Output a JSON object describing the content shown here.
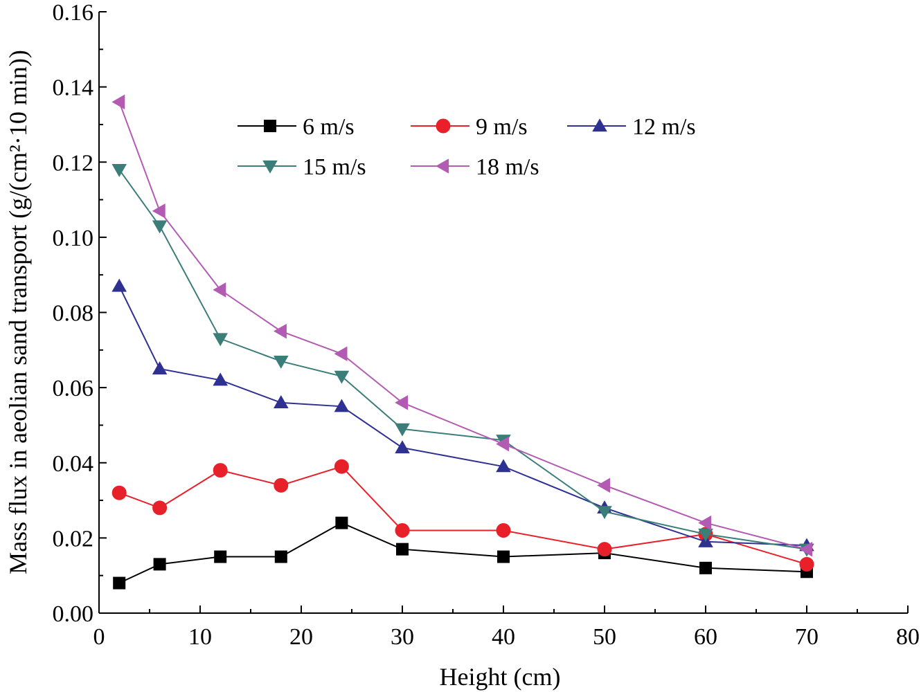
{
  "chart_data": {
    "type": "line",
    "title": "",
    "xlabel": "Height (cm)",
    "ylabel": "Mass flux in aeolian sand transport (g/(cm²·10 min))",
    "xlim": [
      0,
      80
    ],
    "ylim": [
      0,
      0.16
    ],
    "xticks": [
      0,
      10,
      20,
      30,
      40,
      50,
      60,
      70,
      80
    ],
    "yticks": [
      0.0,
      0.02,
      0.04,
      0.06,
      0.08,
      0.1,
      0.12,
      0.14,
      0.16
    ],
    "xtick_labels": [
      "0",
      "10",
      "20",
      "30",
      "40",
      "50",
      "60",
      "70",
      "80"
    ],
    "ytick_labels": [
      "0.00",
      "0.02",
      "0.04",
      "0.06",
      "0.08",
      "0.10",
      "0.12",
      "0.14",
      "0.16"
    ],
    "grid": false,
    "legend_position": "top-center",
    "x": [
      2,
      6,
      12,
      18,
      24,
      30,
      40,
      50,
      60,
      70
    ],
    "series": [
      {
        "name": "6 m/s",
        "color": "#000000",
        "marker": "square",
        "values": [
          0.008,
          0.013,
          0.015,
          0.015,
          0.024,
          0.017,
          0.015,
          0.016,
          0.012,
          0.011
        ]
      },
      {
        "name": "9 m/s",
        "color": "#e8202a",
        "marker": "circle",
        "values": [
          0.032,
          0.028,
          0.038,
          0.034,
          0.039,
          0.022,
          0.022,
          0.017,
          0.021,
          0.013
        ]
      },
      {
        "name": "12 m/s",
        "color": "#2f3192",
        "marker": "triangle-up",
        "values": [
          0.087,
          0.065,
          0.062,
          0.056,
          0.055,
          0.044,
          0.039,
          0.028,
          0.019,
          0.018
        ]
      },
      {
        "name": "15 m/s",
        "color": "#3b7d79",
        "marker": "triangle-down",
        "values": [
          0.118,
          0.103,
          0.073,
          0.067,
          0.063,
          0.049,
          0.046,
          0.027,
          0.021,
          0.017
        ]
      },
      {
        "name": "18 m/s",
        "color": "#b35bb3",
        "marker": "triangle-left",
        "values": [
          0.136,
          0.107,
          0.086,
          0.075,
          0.069,
          0.056,
          0.045,
          0.034,
          0.024,
          0.017
        ]
      }
    ]
  }
}
